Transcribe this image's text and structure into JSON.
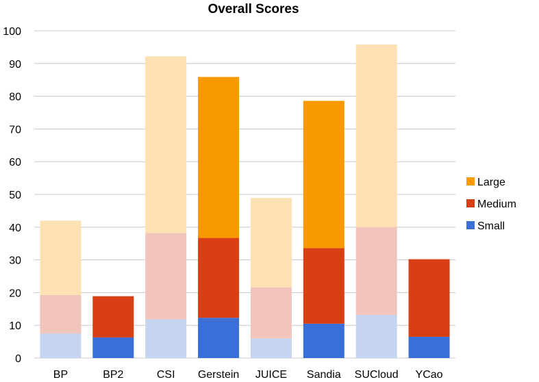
{
  "chart_data": {
    "type": "bar",
    "stacked": true,
    "title": "Overall Scores",
    "categories": [
      "BP",
      "BP2",
      "CSI",
      "Gerstein",
      "JUICE",
      "Sandia",
      "SUCloud",
      "YCao"
    ],
    "ylim": [
      0,
      100
    ],
    "yticks": [
      0,
      10,
      20,
      30,
      40,
      50,
      60,
      70,
      80,
      90,
      100
    ],
    "grid": true,
    "legend_position": "right",
    "series": [
      {
        "name": "Small",
        "color": "#3a6fd8",
        "faded_color": "#c5d4ef",
        "values": [
          7.5,
          6.3,
          11.8,
          12.3,
          6.0,
          10.5,
          13.2,
          6.5
        ]
      },
      {
        "name": "Medium",
        "color": "#d83f14",
        "faded_color": "#f2c5bc",
        "values": [
          11.8,
          12.6,
          26.4,
          24.4,
          15.6,
          23.1,
          26.8,
          23.7
        ]
      },
      {
        "name": "Large",
        "color": "#f99a00",
        "faded_color": "#fde1b3",
        "values": [
          22.7,
          0,
          54.0,
          49.2,
          27.3,
          45.0,
          55.8,
          0
        ]
      }
    ],
    "faded_categories": [
      "BP",
      "CSI",
      "JUICE",
      "SUCloud"
    ]
  }
}
